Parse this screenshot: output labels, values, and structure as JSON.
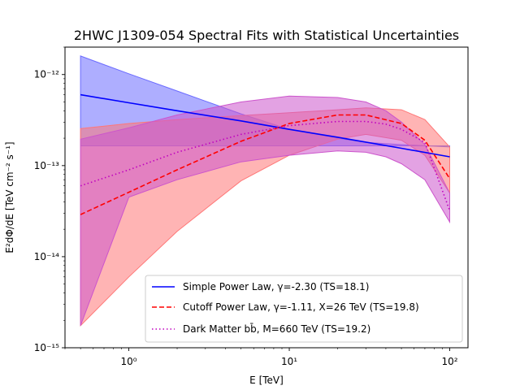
{
  "chart_data": {
    "type": "line",
    "title": "2HWC J1309-054 Spectral Fits with Statistical Uncertainties",
    "xlabel": "E [TeV]",
    "ylabel": "E²dΦ/dE [TeV cm⁻² s⁻¹]",
    "xscale": "log",
    "yscale": "log",
    "xlim": [
      0.4,
      130
    ],
    "ylim": [
      1e-15,
      2e-12
    ],
    "x_ticks": [
      {
        "value": 1,
        "label": "10⁰"
      },
      {
        "value": 10,
        "label": "10¹"
      },
      {
        "value": 100,
        "label": "10²"
      }
    ],
    "y_ticks": [
      {
        "value": 1e-15,
        "label": "10⁻¹⁵"
      },
      {
        "value": 1e-14,
        "label": "10⁻¹⁴"
      },
      {
        "value": 1e-13,
        "label": "10⁻¹³"
      },
      {
        "value": 1e-12,
        "label": "10⁻¹²"
      }
    ],
    "legend_position": "lower-right",
    "series": [
      {
        "name": "Simple Power Law, γ=-2.30 (TS=18.1)",
        "color": "#0000ff",
        "band_color": "#6b6bff",
        "style": "solid",
        "x": [
          0.5,
          1,
          2,
          5,
          10,
          20,
          50,
          100
        ],
        "y": [
          6e-13,
          4.9e-13,
          4e-13,
          3.1e-13,
          2.5e-13,
          2.05e-13,
          1.55e-13,
          1.25e-13
        ],
        "band_x": [
          0.5,
          1,
          2,
          5,
          10,
          20,
          30,
          50,
          100
        ],
        "band_low": [
          1.65e-13,
          1.65e-13,
          1.65e-13,
          1.65e-13,
          1.65e-13,
          1.65e-13,
          1.65e-13,
          1.65e-13,
          1.65e-13
        ],
        "band_high": [
          1.6e-12,
          1.02e-12,
          6.6e-13,
          3.7e-13,
          2.5e-13,
          2e-13,
          1.8e-13,
          1.7e-13,
          1.6e-13
        ]
      },
      {
        "name": "Cutoff Power Law, γ=-1.11, X=26 TeV (TS=19.8)",
        "color": "#ff0000",
        "band_color": "#ff7777",
        "style": "dashed",
        "x": [
          0.5,
          1,
          2,
          5,
          10,
          20,
          30,
          50,
          70,
          100
        ],
        "y": [
          2.9e-14,
          5.1e-14,
          9e-14,
          1.85e-13,
          2.9e-13,
          3.6e-13,
          3.6e-13,
          2.9e-13,
          1.9e-13,
          7.2e-14
        ],
        "band_x": [
          0.5,
          1,
          2,
          5,
          10,
          20,
          30,
          50,
          70,
          100
        ],
        "band_low": [
          1.75e-15,
          6e-15,
          1.9e-14,
          6.8e-14,
          1.3e-13,
          1.95e-13,
          2.2e-13,
          1.9e-13,
          1.3e-13,
          5e-14
        ],
        "band_high": [
          2.55e-13,
          2.9e-13,
          3.2e-13,
          3.55e-13,
          3.8e-13,
          4.1e-13,
          4.3e-13,
          4.1e-13,
          3.2e-13,
          1.6e-13
        ]
      },
      {
        "name": "Dark Matter bb̄, M=660 TeV (TS=19.2)",
        "color": "#bf00bf",
        "band_color": "#cc55cc",
        "style": "dotted",
        "x": [
          0.5,
          1,
          2,
          5,
          10,
          20,
          30,
          40,
          50,
          70,
          100
        ],
        "y": [
          6e-14,
          9e-14,
          1.4e-13,
          2.2e-13,
          2.75e-13,
          3.05e-13,
          3.05e-13,
          2.85e-13,
          2.5e-13,
          1.8e-13,
          3.2e-14
        ],
        "band_x": [
          0.5,
          1,
          2,
          5,
          10,
          20,
          30,
          40,
          50,
          70,
          100
        ],
        "band_low": [
          1.75e-15,
          4.5e-14,
          7e-14,
          1.1e-13,
          1.3e-13,
          1.45e-13,
          1.4e-13,
          1.25e-13,
          1.05e-13,
          7e-14,
          2.4e-14
        ],
        "band_high": [
          1.95e-13,
          2.6e-13,
          3.6e-13,
          5e-13,
          5.8e-13,
          5.6e-13,
          5e-13,
          4e-13,
          3e-13,
          1.7e-13,
          5e-14
        ]
      }
    ]
  }
}
